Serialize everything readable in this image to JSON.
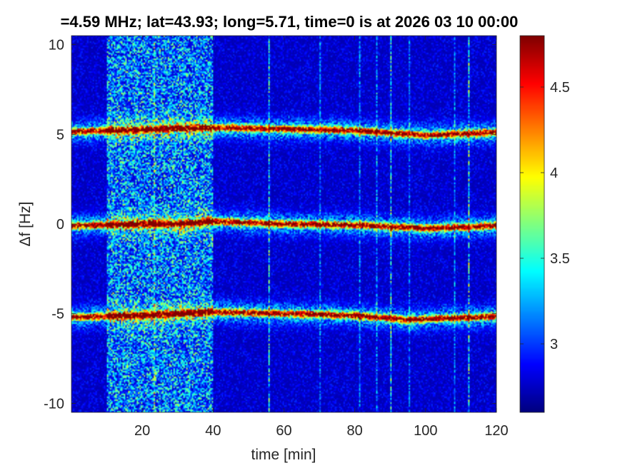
{
  "chart_data": {
    "type": "heatmap",
    "title": "=4.59 MHz;  lat=43.93; long=5.71, time=0 is at 2026 03 10 00:00",
    "xlabel": "time [min]",
    "ylabel": "Δf [Hz]",
    "xlim": [
      0,
      120
    ],
    "ylim": [
      -10.5,
      10.5
    ],
    "xticks": [
      20,
      40,
      60,
      80,
      100,
      120
    ],
    "yticks": [
      -10,
      -5,
      0,
      5,
      10
    ],
    "xtick_labels": [
      "20",
      "40",
      "60",
      "80",
      "100",
      "120"
    ],
    "ytick_labels": [
      "-10",
      "-5",
      "0",
      "5",
      "10"
    ],
    "colorbar": {
      "range": [
        2.6,
        4.8
      ],
      "ticks": [
        3,
        3.5,
        4,
        4.5
      ],
      "tick_labels": [
        "3",
        "3.5",
        "4",
        "4.5"
      ],
      "colormap": "jet"
    },
    "traces": [
      {
        "offset_hz": 5.2,
        "points": [
          [
            0,
            5.15
          ],
          [
            20,
            5.25
          ],
          [
            30,
            5.35
          ],
          [
            45,
            5.35
          ],
          [
            60,
            5.3
          ],
          [
            80,
            5.2
          ],
          [
            100,
            4.95
          ],
          [
            120,
            5.1
          ]
        ]
      },
      {
        "offset_hz": 0.0,
        "points": [
          [
            0,
            -0.1
          ],
          [
            20,
            0.0
          ],
          [
            30,
            0.0
          ],
          [
            40,
            0.15
          ],
          [
            60,
            0.0
          ],
          [
            80,
            -0.05
          ],
          [
            100,
            -0.25
          ],
          [
            120,
            -0.1
          ]
        ]
      },
      {
        "offset_hz": -5.1,
        "points": [
          [
            0,
            -5.2
          ],
          [
            20,
            -5.1
          ],
          [
            40,
            -4.9
          ],
          [
            60,
            -5.0
          ],
          [
            80,
            -5.1
          ],
          [
            95,
            -5.35
          ],
          [
            120,
            -5.15
          ]
        ]
      }
    ],
    "noisy_interval_min": [
      10,
      40
    ],
    "grid": false
  },
  "colors": {
    "background_low": "#00008f",
    "axes_text": "#262626",
    "title_text": "#000000"
  }
}
